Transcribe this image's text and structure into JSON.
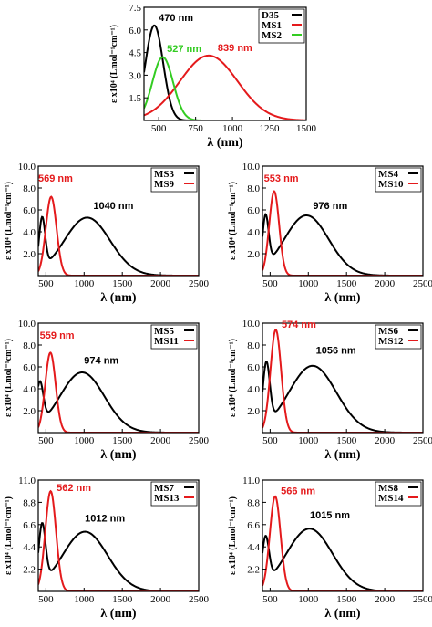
{
  "colors": {
    "black": "#000000",
    "red": "#e41a1c",
    "green": "#33cc22"
  },
  "chart_data": [
    {
      "type": "line",
      "panel": "top",
      "xlabel": "λ (nm)",
      "ylabel": "ε x10⁴ (Lmol⁻¹cm⁻¹)",
      "xlim": [
        400,
        1500
      ],
      "ylim": [
        0,
        7.5
      ],
      "xticks": [
        500,
        750,
        1000,
        1250,
        1500
      ],
      "yticks": [
        1.5,
        3.0,
        4.5,
        6.0,
        7.5
      ],
      "ytick_labels": [
        "1.5",
        "3.0",
        "4.5",
        "6.0",
        "7.5"
      ],
      "legend_position": "top-right",
      "series": [
        {
          "name": "D35",
          "color": "black",
          "peaks": [
            {
              "x": 470,
              "y": 6.3,
              "w": 60
            }
          ],
          "label": {
            "text": "470 nm",
            "x": 500,
            "y": 6.6
          }
        },
        {
          "name": "MS1",
          "color": "red",
          "peaks": [
            {
              "x": 839,
              "y": 4.3,
              "w": 195
            }
          ],
          "label": {
            "text": "839 nm",
            "x": 900,
            "y": 4.6
          }
        },
        {
          "name": "MS2",
          "color": "green",
          "peaks": [
            {
              "x": 527,
              "y": 4.2,
              "w": 70
            }
          ],
          "label": {
            "text": "527 nm",
            "x": 555,
            "y": 4.55
          }
        }
      ]
    },
    {
      "type": "line",
      "panel": "row1-left",
      "xlabel": "λ (nm)",
      "ylabel": "ε x10⁴ (Lmol⁻¹cm⁻¹)",
      "xlim": [
        400,
        2500
      ],
      "ylim": [
        0,
        10
      ],
      "xticks": [
        500,
        1000,
        1500,
        2000,
        2500
      ],
      "yticks": [
        2,
        4,
        6,
        8,
        10
      ],
      "ytick_labels": [
        "2.0",
        "4.0",
        "6.0",
        "8.0",
        "10.0"
      ],
      "legend_position": "top-right",
      "series": [
        {
          "name": "MS3",
          "color": "black",
          "peaks": [
            {
              "x": 450,
              "y": 4.6,
              "w": 40
            },
            {
              "x": 1040,
              "y": 5.3,
              "w": 300
            }
          ],
          "label": {
            "text": "1040 nm",
            "x": 1120,
            "y": 6.1
          }
        },
        {
          "name": "MS9",
          "color": "red",
          "peaks": [
            {
              "x": 569,
              "y": 7.2,
              "w": 70
            }
          ],
          "label": {
            "text": "569 nm",
            "x": 400,
            "y": 8.6
          }
        }
      ]
    },
    {
      "type": "line",
      "panel": "row1-right",
      "xlabel": "λ (nm)",
      "ylabel": "ε x10⁴ (Lmol⁻¹cm⁻¹)",
      "xlim": [
        400,
        2500
      ],
      "ylim": [
        0,
        10
      ],
      "xticks": [
        500,
        1000,
        1500,
        2000,
        2500
      ],
      "yticks": [
        2,
        4,
        6,
        8,
        10
      ],
      "ytick_labels": [
        "2.0",
        "4.0",
        "6.0",
        "8.0",
        "10.0"
      ],
      "legend_position": "top-right",
      "series": [
        {
          "name": "MS4",
          "color": "black",
          "peaks": [
            {
              "x": 440,
              "y": 4.6,
              "w": 40
            },
            {
              "x": 976,
              "y": 5.5,
              "w": 290
            }
          ],
          "label": {
            "text": "976 nm",
            "x": 1060,
            "y": 6.1
          }
        },
        {
          "name": "MS10",
          "color": "red",
          "peaks": [
            {
              "x": 553,
              "y": 7.7,
              "w": 65
            }
          ],
          "label": {
            "text": "553 nm",
            "x": 420,
            "y": 8.6
          }
        }
      ]
    },
    {
      "type": "line",
      "panel": "row2-left",
      "xlabel": "λ (nm)",
      "ylabel": "ε x10⁴ (Lmol⁻¹cm⁻¹)",
      "xlim": [
        400,
        2500
      ],
      "ylim": [
        0,
        10
      ],
      "xticks": [
        500,
        1000,
        1500,
        2000,
        2500
      ],
      "yticks": [
        2,
        4,
        6,
        8,
        10
      ],
      "ytick_labels": [
        "2.0",
        "4.0",
        "6.0",
        "8.0",
        "10.0"
      ],
      "legend_position": "top-right",
      "series": [
        {
          "name": "MS5",
          "color": "black",
          "peaks": [
            {
              "x": 420,
              "y": 3.8,
              "w": 45
            },
            {
              "x": 974,
              "y": 5.5,
              "w": 290
            }
          ],
          "label": {
            "text": "974 nm",
            "x": 1000,
            "y": 6.3
          }
        },
        {
          "name": "MS11",
          "color": "red",
          "peaks": [
            {
              "x": 559,
              "y": 7.3,
              "w": 68
            }
          ],
          "label": {
            "text": "559 nm",
            "x": 420,
            "y": 8.6
          }
        }
      ]
    },
    {
      "type": "line",
      "panel": "row2-right",
      "xlabel": "λ (nm)",
      "ylabel": "ε x10⁴ (Lmol⁻¹cm⁻¹)",
      "xlim": [
        400,
        2500
      ],
      "ylim": [
        0,
        10
      ],
      "xticks": [
        500,
        1000,
        1500,
        2000,
        2500
      ],
      "yticks": [
        2,
        4,
        6,
        8,
        10
      ],
      "ytick_labels": [
        "2.0",
        "4.0",
        "6.0",
        "8.0",
        "10.0"
      ],
      "legend_position": "top-right",
      "series": [
        {
          "name": "MS6",
          "color": "black",
          "peaks": [
            {
              "x": 450,
              "y": 5.6,
              "w": 45
            },
            {
              "x": 1056,
              "y": 6.1,
              "w": 310
            }
          ],
          "label": {
            "text": "1056 nm",
            "x": 1100,
            "y": 7.2
          }
        },
        {
          "name": "MS12",
          "color": "red",
          "peaks": [
            {
              "x": 574,
              "y": 9.4,
              "w": 70
            }
          ],
          "label": {
            "text": "574 nm",
            "x": 650,
            "y": 9.6
          }
        }
      ]
    },
    {
      "type": "line",
      "panel": "row3-left",
      "xlabel": "λ (nm)",
      "ylabel": "ε x10⁴ (Lmol⁻¹cm⁻¹)",
      "xlim": [
        400,
        2500
      ],
      "ylim": [
        0,
        11
      ],
      "xticks": [
        500,
        1000,
        1500,
        2000,
        2500
      ],
      "yticks": [
        2.2,
        4.4,
        6.6,
        8.8,
        11.0
      ],
      "ytick_labels": [
        "2.2",
        "4.4",
        "6.6",
        "8.8",
        "11.0"
      ],
      "legend_position": "top-right",
      "series": [
        {
          "name": "MS7",
          "color": "black",
          "peaks": [
            {
              "x": 450,
              "y": 5.8,
              "w": 45
            },
            {
              "x": 1012,
              "y": 5.9,
              "w": 295
            }
          ],
          "label": {
            "text": "1012 nm",
            "x": 1010,
            "y": 6.9
          }
        },
        {
          "name": "MS13",
          "color": "red",
          "peaks": [
            {
              "x": 562,
              "y": 9.9,
              "w": 70
            }
          ],
          "label": {
            "text": "562 nm",
            "x": 640,
            "y": 9.9
          }
        }
      ]
    },
    {
      "type": "line",
      "panel": "row3-right",
      "xlabel": "λ (nm)",
      "ylabel": "ε x10⁴ (Lmol⁻¹cm⁻¹)",
      "xlim": [
        400,
        2500
      ],
      "ylim": [
        0,
        11
      ],
      "xticks": [
        500,
        1000,
        1500,
        2000,
        2500
      ],
      "yticks": [
        2.2,
        4.4,
        6.6,
        8.8,
        11.0
      ],
      "ytick_labels": [
        "2.2",
        "4.4",
        "6.6",
        "8.8",
        "11.0"
      ],
      "legend_position": "top-right",
      "series": [
        {
          "name": "MS8",
          "color": "black",
          "peaks": [
            {
              "x": 440,
              "y": 4.5,
              "w": 45
            },
            {
              "x": 1015,
              "y": 6.2,
              "w": 300
            }
          ],
          "label": {
            "text": "1015 nm",
            "x": 1020,
            "y": 7.2
          }
        },
        {
          "name": "MS14",
          "color": "red",
          "peaks": [
            {
              "x": 566,
              "y": 9.4,
              "w": 70
            }
          ],
          "label": {
            "text": "566 nm",
            "x": 640,
            "y": 9.6
          }
        }
      ]
    }
  ]
}
